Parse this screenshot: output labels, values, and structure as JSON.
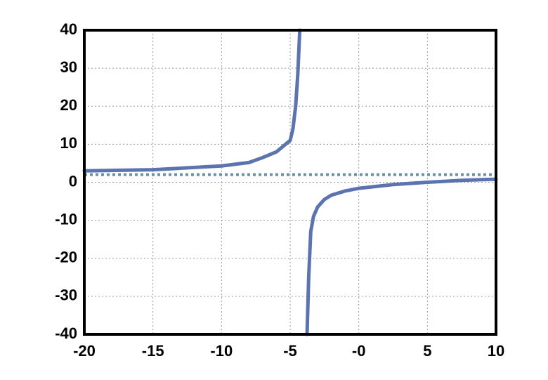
{
  "chart_data": {
    "type": "line",
    "x": [
      -20,
      -15,
      -10,
      -8,
      -7,
      -6,
      -5.5,
      -5,
      -4.8,
      -4.6,
      -4.45,
      -4.3,
      null,
      -3.77,
      -3.65,
      -3.5,
      -3.3,
      -3,
      -2.5,
      -2,
      -1,
      0,
      2.5,
      5,
      7.5,
      10
    ],
    "values": [
      3,
      3.3,
      4.3,
      5.2,
      6.5,
      8,
      9.5,
      11,
      14,
      20,
      28,
      40,
      null,
      -40,
      -25,
      -13,
      -9,
      -6.5,
      -4.5,
      -3.4,
      -2.3,
      -1.6,
      -0.6,
      0,
      0.5,
      0.8
    ],
    "color": "#5b74b0",
    "reference_lines": [
      {
        "y": 2,
        "style": "dotted",
        "color": "#6d8fa3"
      }
    ],
    "xlim": [
      -20,
      10
    ],
    "ylim": [
      -40,
      40
    ],
    "xticks": [
      -20,
      -15,
      -10,
      -5,
      {
        "value": 0,
        "label": "-0"
      },
      5,
      10
    ],
    "yticks": [
      -40,
      -30,
      -20,
      -10,
      0,
      10,
      20,
      30,
      40
    ],
    "grid": true
  }
}
